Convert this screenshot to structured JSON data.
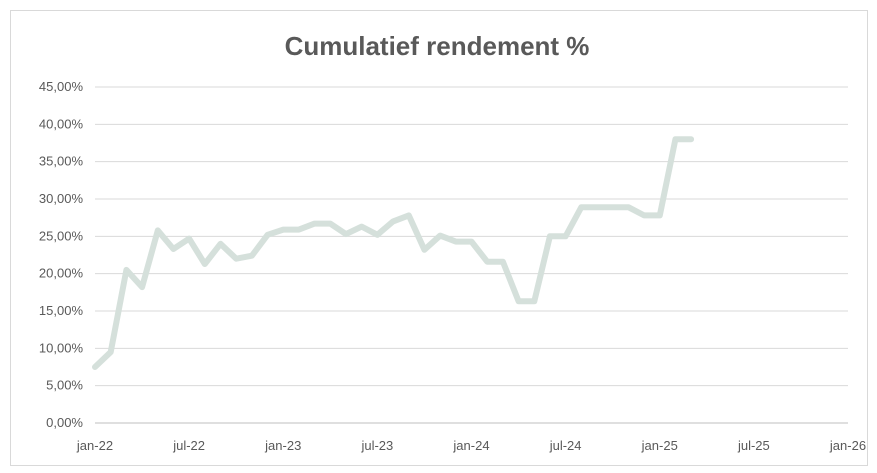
{
  "chart_data": {
    "type": "line",
    "title": "Cumulatief rendement %",
    "xlabel": "",
    "ylabel": "",
    "ylim": [
      0,
      45
    ],
    "yticks": [
      0,
      5,
      10,
      15,
      20,
      25,
      30,
      35,
      40,
      45
    ],
    "ytick_labels": [
      "0,00%",
      "5,00%",
      "10,00%",
      "15,00%",
      "20,00%",
      "25,00%",
      "30,00%",
      "35,00%",
      "40,00%",
      "45,00%"
    ],
    "xlim": [
      "2022-01",
      "2026-01"
    ],
    "xticks": [
      "2022-01",
      "2022-07",
      "2023-01",
      "2023-07",
      "2024-01",
      "2024-07",
      "2025-01",
      "2025-07",
      "2026-01"
    ],
    "xtick_labels": [
      "jan-22",
      "jul-22",
      "jan-23",
      "jul-23",
      "jan-24",
      "jul-24",
      "jan-25",
      "jul-25",
      "jan-26"
    ],
    "grid": true,
    "legend": "none",
    "series": [
      {
        "color": "#d5e0db",
        "x": [
          "2022-01",
          "2022-02",
          "2022-03",
          "2022-04",
          "2022-05",
          "2022-06",
          "2022-07",
          "2022-08",
          "2022-09",
          "2022-10",
          "2022-11",
          "2022-12",
          "2023-01",
          "2023-02",
          "2023-03",
          "2023-04",
          "2023-05",
          "2023-06",
          "2023-07",
          "2023-08",
          "2023-09",
          "2023-10",
          "2023-11",
          "2023-12",
          "2024-01",
          "2024-02",
          "2024-03",
          "2024-04",
          "2024-05",
          "2024-06",
          "2024-07",
          "2024-08",
          "2024-09",
          "2024-10",
          "2024-11",
          "2024-12",
          "2025-01",
          "2025-02",
          "2025-03"
        ],
        "values": [
          7.5,
          9.5,
          20.5,
          18.2,
          25.8,
          23.3,
          24.7,
          21.3,
          24.0,
          22.0,
          22.4,
          25.2,
          25.9,
          25.9,
          26.7,
          26.7,
          25.3,
          26.3,
          25.2,
          27.0,
          27.8,
          23.2,
          25.1,
          24.3,
          24.3,
          21.6,
          21.6,
          16.3,
          16.3,
          25.0,
          25.0,
          28.9,
          28.9,
          28.9,
          28.9,
          27.8,
          27.8,
          38.0,
          38.0
        ]
      }
    ]
  }
}
